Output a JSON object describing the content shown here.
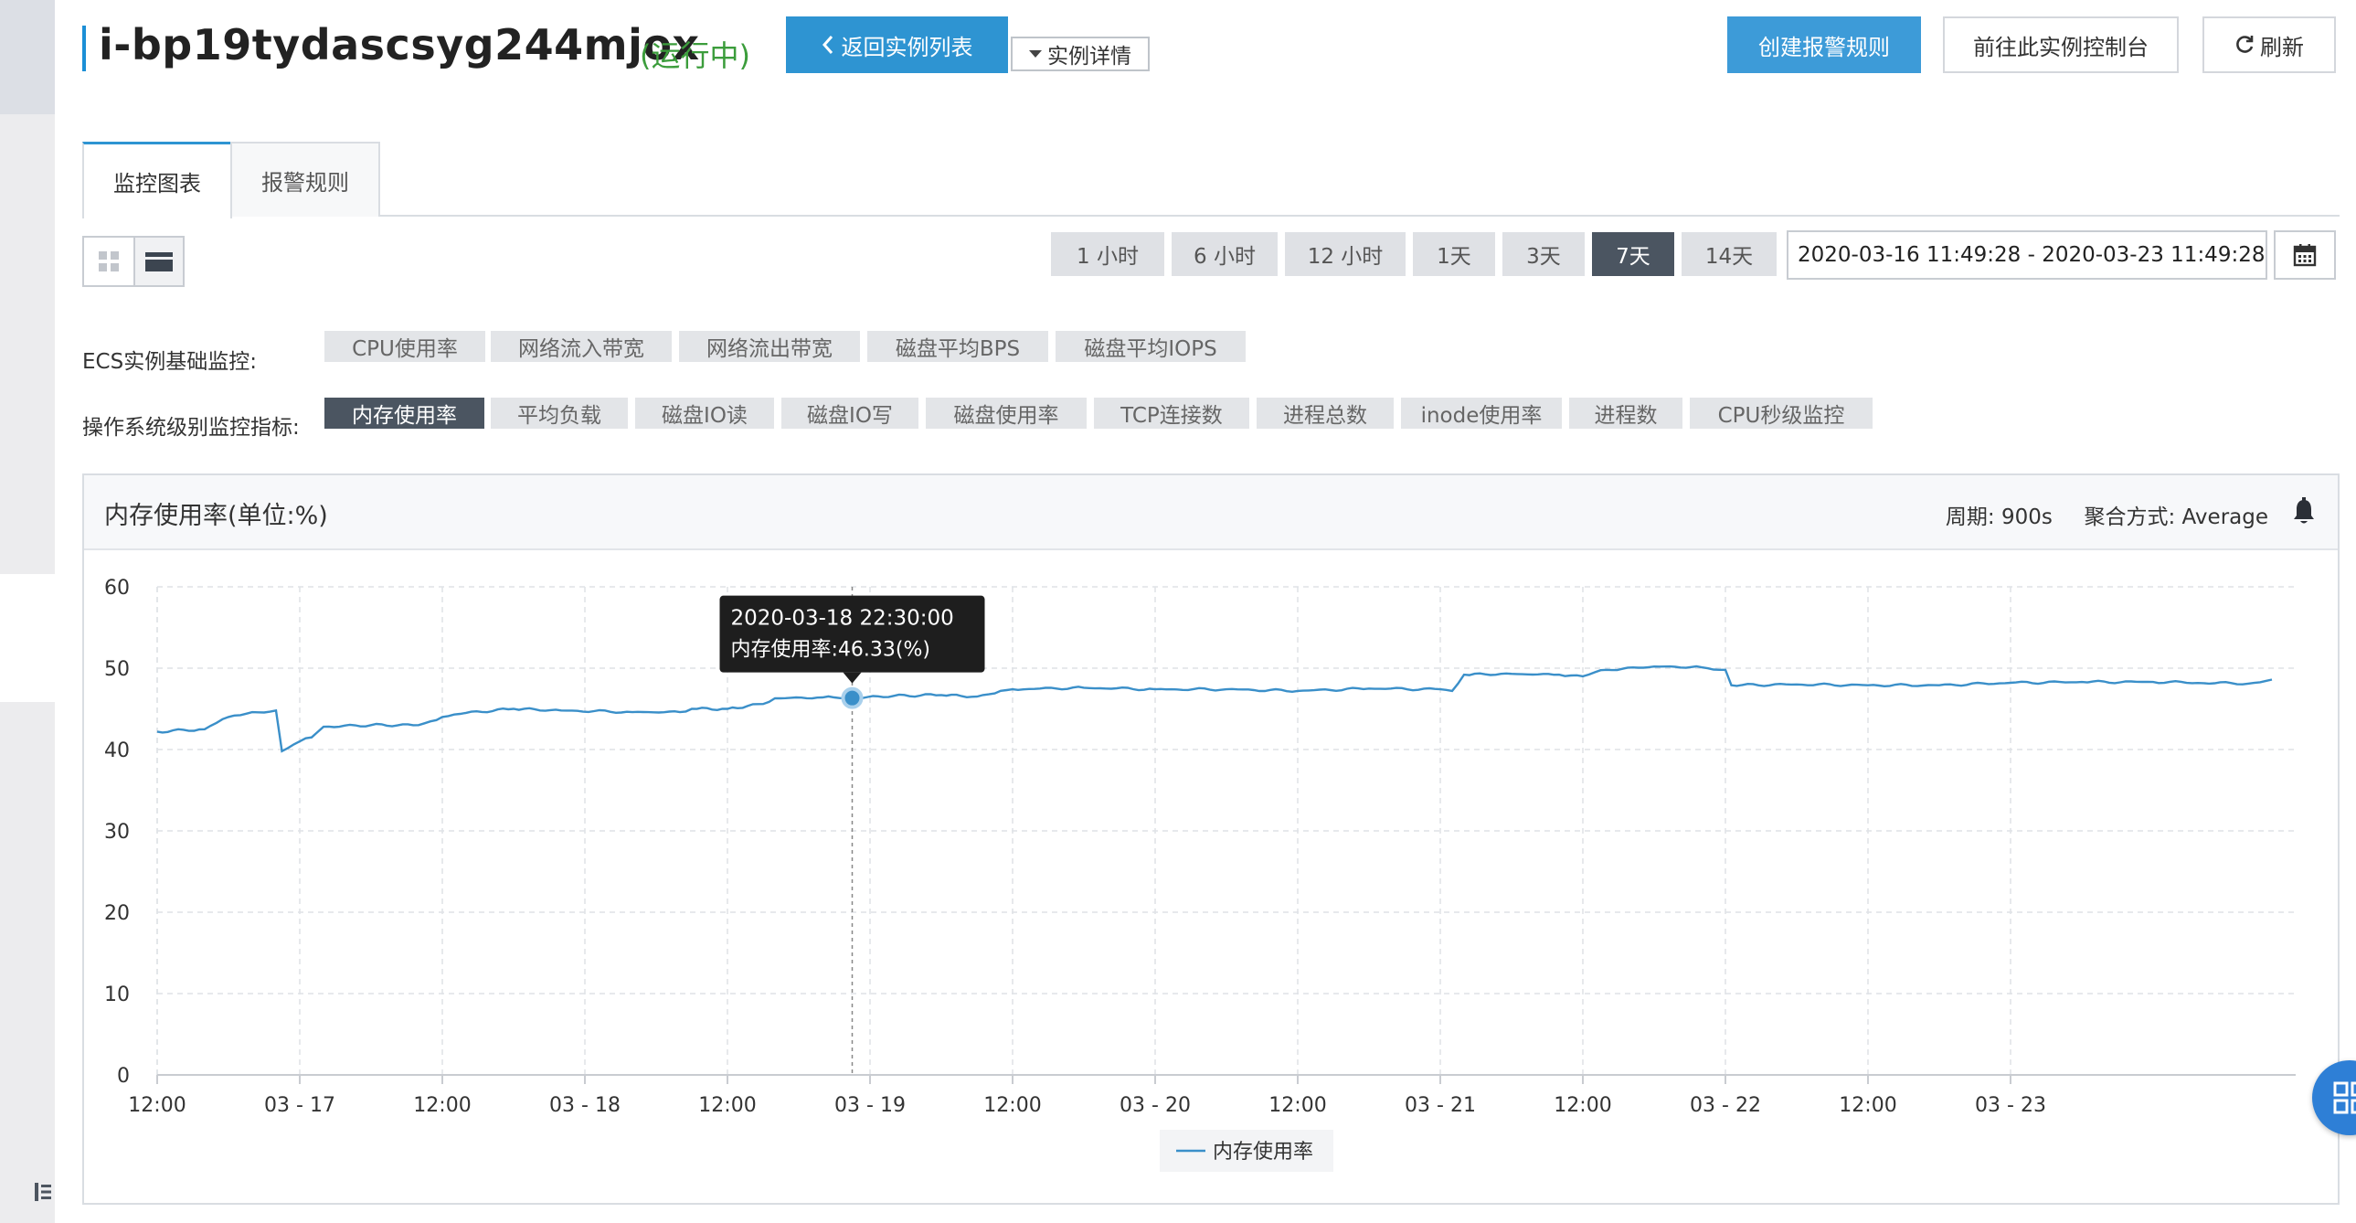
{
  "header": {
    "instance_id": "i-bp19tydascsyg244mjox",
    "status": "(运行中)",
    "back_label": "返回实例列表",
    "detail_label": "实例详情",
    "create_alarm_label": "创建报警规则",
    "console_label": "前往此实例控制台",
    "refresh_label": "刷新"
  },
  "tabs": [
    {
      "label": "监控图表",
      "active": true
    },
    {
      "label": "报警规则",
      "active": false
    }
  ],
  "time_ranges": [
    {
      "label": "1 小时",
      "active": false
    },
    {
      "label": "6 小时",
      "active": false
    },
    {
      "label": "12 小时",
      "active": false
    },
    {
      "label": "1天",
      "active": false
    },
    {
      "label": "3天",
      "active": false
    },
    {
      "label": "7天",
      "active": true
    },
    {
      "label": "14天",
      "active": false
    }
  ],
  "date_range": "2020-03-16 11:49:28 - 2020-03-23 11:49:28",
  "metrics": {
    "basic_label": "ECS实例基础监控:",
    "basic": [
      "CPU使用率",
      "网络流入带宽",
      "网络流出带宽",
      "磁盘平均BPS",
      "磁盘平均IOPS"
    ],
    "os_label": "操作系统级别监控指标:",
    "os": [
      "内存使用率",
      "平均负载",
      "磁盘IO读",
      "磁盘IO写",
      "磁盘使用率",
      "TCP连接数",
      "进程总数",
      "inode使用率",
      "进程数",
      "CPU秒级监控"
    ],
    "os_active": "内存使用率"
  },
  "chart_panel": {
    "title": "内存使用率(单位:%)",
    "period_label": "周期: 900s",
    "aggregation_label": "聚合方式: Average"
  },
  "tooltip": {
    "time": "2020-03-18 22:30:00",
    "value": "内存使用率:46.33(%)"
  },
  "colors": {
    "accent": "#2e94d2",
    "line": "#3a8fc9",
    "active_chip": "#4b5561",
    "status_green": "#3c9d3c"
  },
  "chart_data": {
    "type": "line",
    "title": "内存使用率(单位:%)",
    "ylim": [
      0,
      60
    ],
    "yticks": [
      0,
      10,
      20,
      30,
      40,
      50,
      60
    ],
    "xlim": [
      "2020-03-16 12:00",
      "2020-03-23 24:00"
    ],
    "xtick_labels": [
      "12:00",
      "03 - 17",
      "12:00",
      "03 - 18",
      "12:00",
      "03 - 19",
      "12:00",
      "03 - 20",
      "12:00",
      "03 - 21",
      "12:00",
      "03 - 22",
      "12:00",
      "03 - 23"
    ],
    "grid": true,
    "legend": "bottom-center",
    "series": [
      {
        "name": "内存使用率",
        "points": [
          [
            "2020-03-16 12:00",
            42.2
          ],
          [
            "2020-03-16 16:00",
            42.5
          ],
          [
            "2020-03-16 18:00",
            44.0
          ],
          [
            "2020-03-16 20:00",
            44.6
          ],
          [
            "2020-03-16 22:00",
            44.8
          ],
          [
            "2020-03-16 22:30",
            39.8
          ],
          [
            "2020-03-17 00:00",
            41.0
          ],
          [
            "2020-03-17 01:00",
            41.5
          ],
          [
            "2020-03-17 02:00",
            42.8
          ],
          [
            "2020-03-17 06:00",
            43.0
          ],
          [
            "2020-03-17 10:00",
            43.0
          ],
          [
            "2020-03-17 12:00",
            44.0
          ],
          [
            "2020-03-17 14:00",
            44.5
          ],
          [
            "2020-03-17 18:00",
            45.0
          ],
          [
            "2020-03-17 22:00",
            44.8
          ],
          [
            "2020-03-18 04:00",
            44.6
          ],
          [
            "2020-03-18 08:00",
            44.6
          ],
          [
            "2020-03-18 09:00",
            45.0
          ],
          [
            "2020-03-18 12:00",
            45.0
          ],
          [
            "2020-03-18 15:00",
            45.6
          ],
          [
            "2020-03-18 16:00",
            46.3
          ],
          [
            "2020-03-18 20:00",
            46.4
          ],
          [
            "2020-03-18 22:30",
            46.33
          ],
          [
            "2020-03-19 02:00",
            46.6
          ],
          [
            "2020-03-19 06:00",
            46.7
          ],
          [
            "2020-03-19 09:00",
            46.5
          ],
          [
            "2020-03-19 10:30",
            46.9
          ],
          [
            "2020-03-19 12:00",
            47.4
          ],
          [
            "2020-03-19 18:00",
            47.6
          ],
          [
            "2020-03-20 00:00",
            47.4
          ],
          [
            "2020-03-20 06:00",
            47.4
          ],
          [
            "2020-03-20 12:00",
            47.2
          ],
          [
            "2020-03-20 18:00",
            47.5
          ],
          [
            "2020-03-21 00:00",
            47.4
          ],
          [
            "2020-03-21 01:00",
            47.2
          ],
          [
            "2020-03-21 02:00",
            49.2
          ],
          [
            "2020-03-21 06:00",
            49.3
          ],
          [
            "2020-03-21 10:00",
            49.2
          ],
          [
            "2020-03-21 12:00",
            49.0
          ],
          [
            "2020-03-21 14:00",
            49.8
          ],
          [
            "2020-03-21 18:00",
            50.2
          ],
          [
            "2020-03-21 22:00",
            50.1
          ],
          [
            "2020-03-22 00:00",
            49.8
          ],
          [
            "2020-03-22 00:30",
            47.9
          ],
          [
            "2020-03-22 06:00",
            48.0
          ],
          [
            "2020-03-22 12:00",
            47.9
          ],
          [
            "2020-03-22 18:00",
            47.9
          ],
          [
            "2020-03-23 00:00",
            48.2
          ],
          [
            "2020-03-23 06:00",
            48.3
          ],
          [
            "2020-03-23 12:00",
            48.3
          ],
          [
            "2020-03-23 20:00",
            48.1
          ],
          [
            "2020-03-23 22:00",
            48.6
          ]
        ]
      }
    ],
    "highlight": {
      "x": "2020-03-18 22:30",
      "y": 46.33
    }
  }
}
